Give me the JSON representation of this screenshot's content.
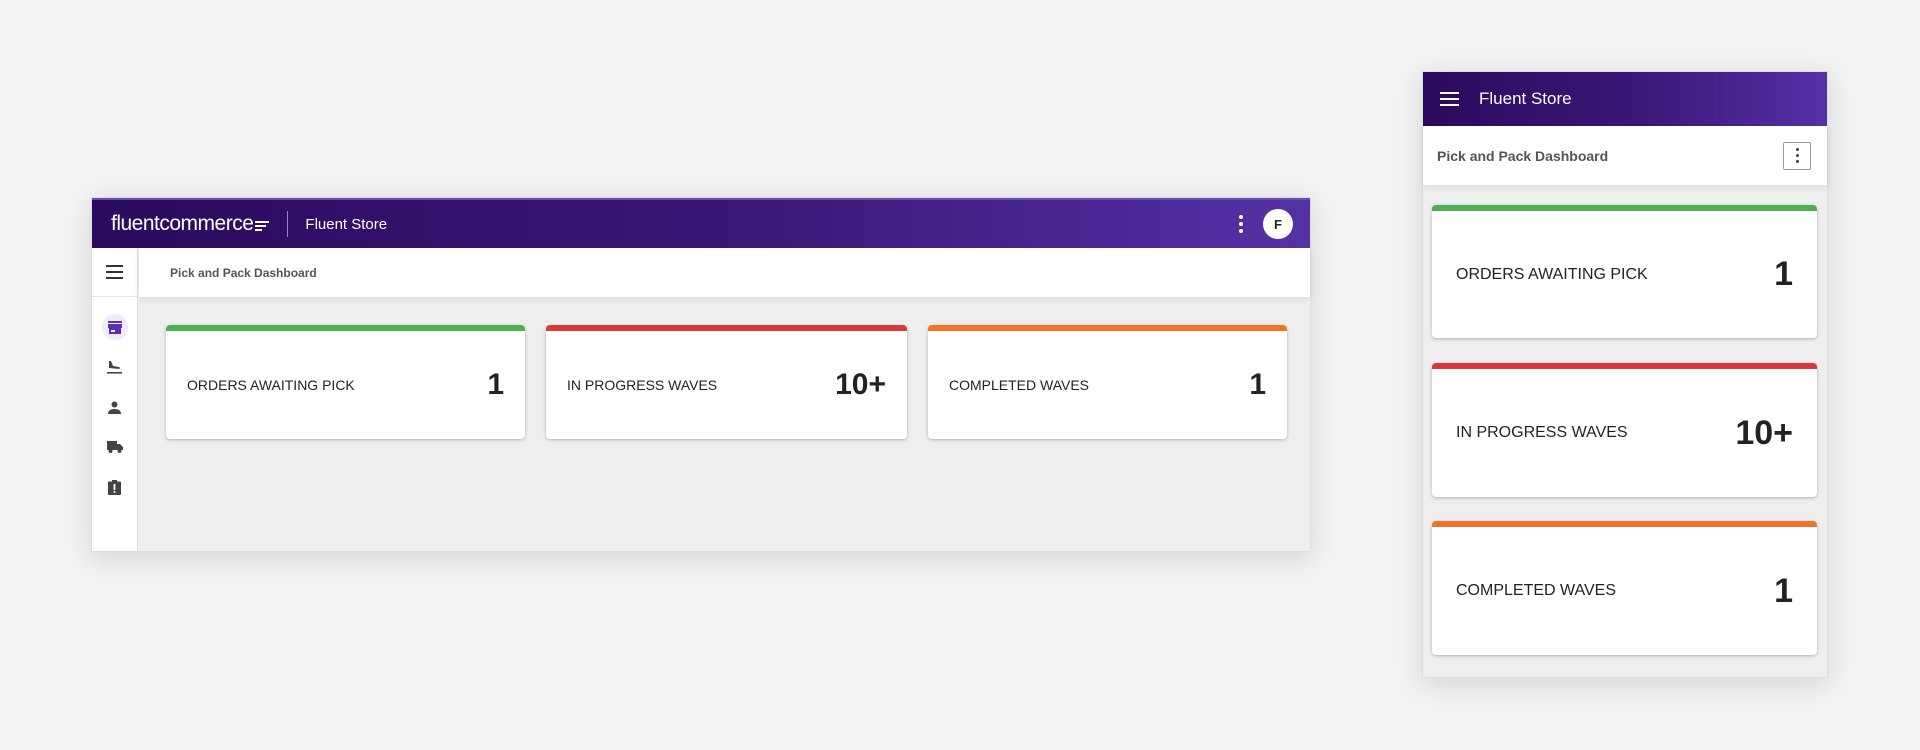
{
  "brand": {
    "logo_text_bold": "fluent",
    "logo_text": "commerce",
    "store_name": "Fluent Store",
    "avatar_initial": "F"
  },
  "page": {
    "title": "Pick and Pack Dashboard"
  },
  "sidebar": {
    "items": [
      {
        "icon": "store-icon",
        "active": true
      },
      {
        "icon": "flight-land-icon"
      },
      {
        "icon": "person-icon"
      },
      {
        "icon": "truck-icon"
      },
      {
        "icon": "clipboard-alert-icon"
      }
    ]
  },
  "cards": [
    {
      "label": "Orders Awaiting Pick",
      "value": "1",
      "color": "#4caf50"
    },
    {
      "label": "In Progress Waves",
      "value": "10+",
      "color": "#d9383a"
    },
    {
      "label": "Completed Waves",
      "value": "1",
      "color": "#f07427"
    }
  ],
  "colors": {
    "header_start": "#2a0b5e",
    "header_end": "#5531a6",
    "active": "#5b2fb0"
  }
}
